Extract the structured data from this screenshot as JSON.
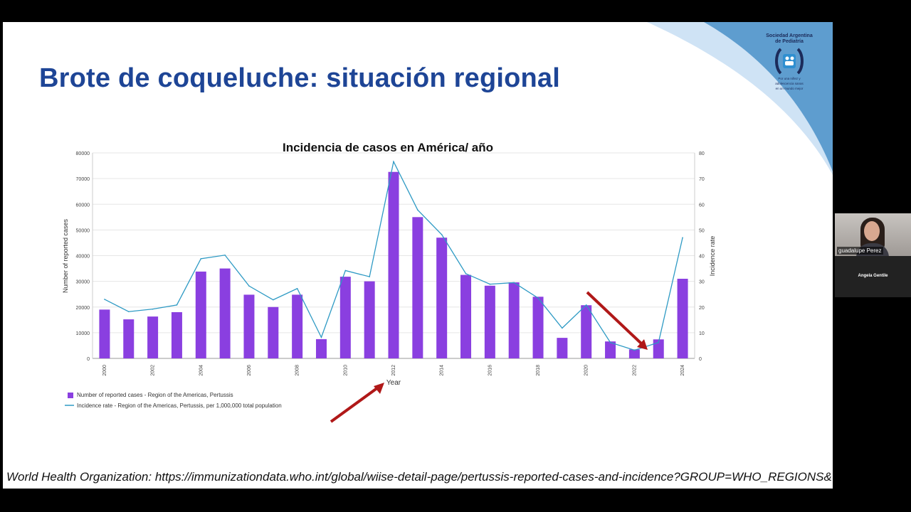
{
  "slide": {
    "title": "Brote de coqueluche: situación regional",
    "source": "World Health Organization: https://immunizationdata.who.int/global/wiise-detail-page/pertussis-reported-cases-and-incidence?GROUP=WHO_REGIONS&YEAR="
  },
  "logo": {
    "org_line1": "Sociedad Argentina",
    "org_line2": "de Pediatría",
    "tagline1": "Por una niñez y",
    "tagline2": "adolescencia sanas",
    "tagline3": "en un mundo mejor"
  },
  "colors": {
    "title": "#1e4596",
    "bars": "#8a3fe0",
    "line": "#2e9ac4",
    "arrow": "#b01818",
    "band_light": "#cfe3f5",
    "band_dark": "#4a90c8"
  },
  "video": {
    "participant_label": "guadalupe Perez",
    "host_label": "Angela Gentile"
  },
  "chart_data": {
    "type": "bar",
    "title": "Incidencia de casos en América/ año",
    "xlabel": "Year",
    "ylabel": "Number of reported cases",
    "y2label": "Incidence rate",
    "ylim": [
      0,
      80000
    ],
    "y2lim": [
      0,
      80
    ],
    "yticks": [
      "0",
      "10000",
      "20000",
      "30000",
      "40000",
      "50000",
      "60000",
      "70000",
      "80000"
    ],
    "y2ticks": [
      "0",
      "10",
      "20",
      "30",
      "40",
      "50",
      "60",
      "70",
      "80"
    ],
    "x": [
      2000,
      2001,
      2002,
      2003,
      2004,
      2005,
      2006,
      2007,
      2008,
      2009,
      2010,
      2011,
      2012,
      2013,
      2014,
      2015,
      2016,
      2017,
      2018,
      2019,
      2020,
      2021,
      2022,
      2023,
      2024
    ],
    "xtick_labels": [
      "2000",
      "2002",
      "2004",
      "2006",
      "2008",
      "2010",
      "2012",
      "2014",
      "2016",
      "2018",
      "2020",
      "2022",
      "2024"
    ],
    "grid": true,
    "legend_position": "bottom-left",
    "series": [
      {
        "name": "Number of reported cases - Region of the Americas, Pertussis",
        "kind": "bar",
        "axis": "left",
        "values": [
          19000,
          15200,
          16300,
          18000,
          33800,
          35000,
          24800,
          20000,
          24800,
          7500,
          31800,
          30000,
          72600,
          55000,
          47000,
          32500,
          28300,
          29600,
          24000,
          8000,
          20700,
          6600,
          3500,
          7400,
          31000
        ]
      },
      {
        "name": "Incidence rate - Region of the Americas, Pertussis, per 1,000,000 total population",
        "kind": "line",
        "axis": "right",
        "values": [
          23,
          18.2,
          19.2,
          20.8,
          38.8,
          40.2,
          28.2,
          22.8,
          27.2,
          8.2,
          34.2,
          31.8,
          76.6,
          57.8,
          48.2,
          33,
          28.9,
          29.5,
          23.5,
          11.8,
          20.8,
          6.2,
          3.2,
          6.2,
          47
        ]
      }
    ]
  }
}
